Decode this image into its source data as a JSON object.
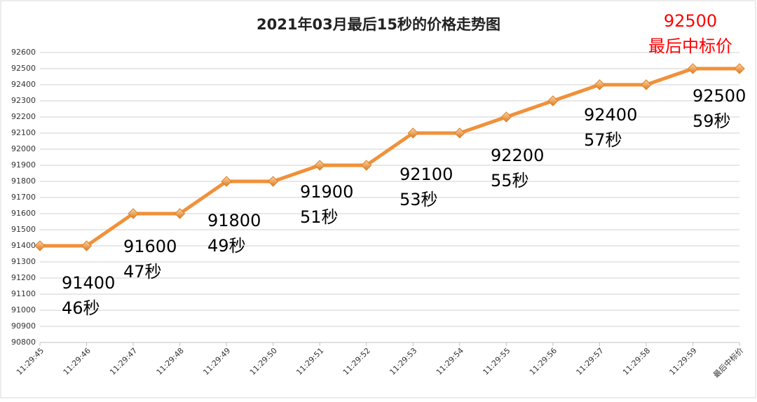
{
  "chart_data": {
    "type": "line",
    "title": "2021年03月最后15秒的价格走势图",
    "categories": [
      "11:29:45",
      "11:29:46",
      "11:29:47",
      "11:29:48",
      "11:29:49",
      "11:29:50",
      "11:29:51",
      "11:29:52",
      "11:29:53",
      "11:29:54",
      "11:29:55",
      "11:29:56",
      "11:29:57",
      "11:29:58",
      "11:29:59",
      "最后中标价"
    ],
    "values": [
      91400,
      91400,
      91600,
      91600,
      91800,
      91800,
      91900,
      91900,
      92100,
      92100,
      92200,
      92300,
      92400,
      92400,
      92500,
      92500
    ],
    "color": "#f0913a",
    "ylim": [
      90800,
      92600
    ],
    "yticks": [
      90800,
      90900,
      91000,
      91100,
      91200,
      91300,
      91400,
      91500,
      91600,
      91700,
      91800,
      91900,
      92000,
      92100,
      92200,
      92300,
      92400,
      92500,
      92600
    ],
    "grid": true,
    "annotations": [
      {
        "lines": [
          "91400",
          "46秒"
        ],
        "color": "#000000"
      },
      {
        "lines": [
          "91600",
          "47秒"
        ],
        "color": "#000000"
      },
      {
        "lines": [
          "91800",
          "49秒"
        ],
        "color": "#000000"
      },
      {
        "lines": [
          "91900",
          "51秒"
        ],
        "color": "#000000"
      },
      {
        "lines": [
          "92100",
          "53秒"
        ],
        "color": "#000000"
      },
      {
        "lines": [
          "92200",
          "55秒"
        ],
        "color": "#000000"
      },
      {
        "lines": [
          "92400",
          "57秒"
        ],
        "color": "#000000"
      },
      {
        "lines": [
          "92500",
          "59秒"
        ],
        "color": "#000000"
      },
      {
        "lines": [
          "92500",
          "最后中标价"
        ],
        "color": "#ff0000"
      }
    ]
  }
}
